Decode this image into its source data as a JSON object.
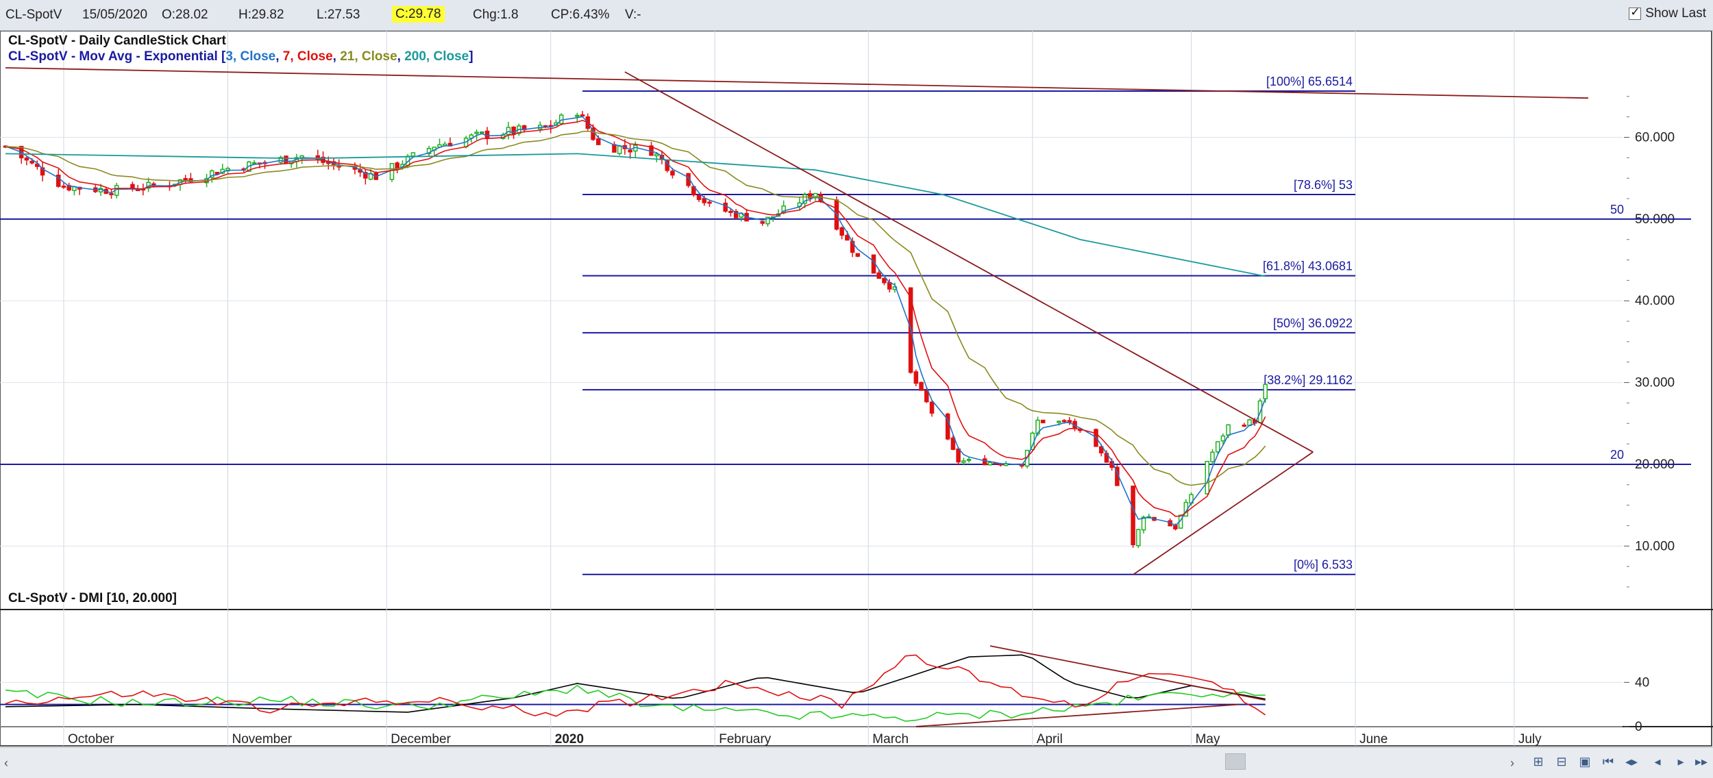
{
  "header": {
    "symbol": "CL-SpotV",
    "date": "15/05/2020",
    "open": "O:28.02",
    "high": "H:29.82",
    "low": "L:27.53",
    "close": "C:29.78",
    "change": "Chg:1.8",
    "change_pct": "CP:6.43%",
    "volume": "V:-",
    "show_last_label": "Show Last",
    "show_last_checked": true
  },
  "colors": {
    "ema3": "#1f73c8",
    "ema7": "#e01010",
    "ema21": "#8a8a20",
    "ema200": "#189a9a",
    "navy": "#1a1aa0",
    "maroon": "#8b1a1a",
    "up": "#20b020",
    "down": "#e01010",
    "adx": "#000000",
    "di_plus": "#22cc22",
    "di_minus": "#e01010"
  },
  "chart_data": [
    {
      "type": "candlestick",
      "title": "CL-SpotV - Daily CandleStick Chart",
      "legend": {
        "prefix": "CL-SpotV - Mov Avg - Exponential [",
        "items": [
          "3, Close",
          "7, Close",
          "21, Close",
          "200, Close"
        ],
        "suffix": "]"
      },
      "x_labels": [
        "October",
        "November",
        "December",
        "2020",
        "February",
        "March",
        "April",
        "May",
        "June",
        "July"
      ],
      "y_ticks": [
        10,
        20,
        30,
        40,
        50,
        60
      ],
      "y_tick_labels": [
        "10.000",
        "20.000",
        "30.000",
        "40.000",
        "50.000",
        "60.000"
      ],
      "ylim": [
        5,
        68
      ],
      "horizontal_lines": [
        {
          "label": "50",
          "value": 50
        },
        {
          "label": "20",
          "value": 20
        }
      ],
      "fibonacci": [
        {
          "label": "[100%] 65.6514",
          "value": 65.6514
        },
        {
          "label": "[78.6%] 53",
          "value": 53
        },
        {
          "label": "[61.8%] 43.0681",
          "value": 43.0681
        },
        {
          "label": "[50%] 36.0922",
          "value": 36.0922
        },
        {
          "label": "[38.2%] 29.1162",
          "value": 29.1162
        },
        {
          "label": "[0%] 6.533",
          "value": 6.533
        }
      ],
      "close_series": {
        "start": "2019-09-20",
        "end": "2020-05-15",
        "points": [
          [
            "2019-09-20",
            58.9
          ],
          [
            "2019-10-01",
            54.0
          ],
          [
            "2019-10-10",
            53.5
          ],
          [
            "2019-10-20",
            54.2
          ],
          [
            "2019-11-01",
            56.2
          ],
          [
            "2019-11-15",
            57.7
          ],
          [
            "2019-11-29",
            55.2
          ],
          [
            "2019-12-10",
            59.0
          ],
          [
            "2019-12-20",
            60.4
          ],
          [
            "2019-12-31",
            61.1
          ],
          [
            "2020-01-06",
            63.3
          ],
          [
            "2020-01-10",
            59.0
          ],
          [
            "2020-01-20",
            58.4
          ],
          [
            "2020-01-31",
            51.6
          ],
          [
            "2020-02-10",
            49.6
          ],
          [
            "2020-02-20",
            53.3
          ],
          [
            "2020-02-28",
            45.3
          ],
          [
            "2020-03-06",
            41.3
          ],
          [
            "2020-03-09",
            31.1
          ],
          [
            "2020-03-18",
            20.4
          ],
          [
            "2020-03-30",
            20.1
          ],
          [
            "2020-04-02",
            25.3
          ],
          [
            "2020-04-08",
            25.1
          ],
          [
            "2020-04-16",
            19.9
          ],
          [
            "2020-04-20",
            10.0
          ],
          [
            "2020-04-22",
            13.8
          ],
          [
            "2020-04-28",
            12.3
          ],
          [
            "2020-05-04",
            20.4
          ],
          [
            "2020-05-08",
            24.7
          ],
          [
            "2020-05-13",
            25.3
          ],
          [
            "2020-05-15",
            29.8
          ]
        ]
      },
      "ema200_series": [
        [
          "2019-09-20",
          58.0
        ],
        [
          "2019-11-15",
          57.4
        ],
        [
          "2020-01-06",
          58.0
        ],
        [
          "2020-02-20",
          56.0
        ],
        [
          "2020-03-15",
          53.0
        ],
        [
          "2020-04-10",
          47.5
        ],
        [
          "2020-05-15",
          43.0
        ]
      ],
      "trendlines": [
        {
          "from": [
            "2019-09-20",
            68.5
          ],
          "to": [
            "2020-07-15",
            64.8
          ]
        },
        {
          "from": [
            "2020-01-15",
            68.0
          ],
          "to": [
            "2020-05-24",
            21.5
          ]
        },
        {
          "from": [
            "2020-04-20",
            6.5
          ],
          "to": [
            "2020-05-24",
            21.5
          ]
        }
      ]
    },
    {
      "type": "line",
      "title": "CL-SpotV - DMI [10, 20.000]",
      "y_ticks": [
        0,
        40
      ],
      "y_tick_labels": [
        "0",
        "40"
      ],
      "ylim": [
        -5,
        78
      ],
      "reference_line": 20,
      "series": [
        {
          "key": "adx",
          "points": [
            [
              "2019-09-20",
              18
            ],
            [
              "2019-10-15",
              20
            ],
            [
              "2019-11-10",
              16
            ],
            [
              "2019-12-05",
              13
            ],
            [
              "2019-12-25",
              26
            ],
            [
              "2020-01-06",
              39
            ],
            [
              "2020-01-25",
              25
            ],
            [
              "2020-02-10",
              45
            ],
            [
              "2020-02-28",
              30
            ],
            [
              "2020-03-20",
              63
            ],
            [
              "2020-03-31",
              65
            ],
            [
              "2020-04-08",
              40
            ],
            [
              "2020-04-20",
              25
            ],
            [
              "2020-05-01",
              37
            ],
            [
              "2020-05-15",
              25
            ]
          ]
        },
        {
          "key": "di_plus",
          "points": [
            [
              "2019-09-20",
              30
            ],
            [
              "2019-10-15",
              21
            ],
            [
              "2019-11-10",
              24
            ],
            [
              "2019-12-05",
              18
            ],
            [
              "2019-12-31",
              30
            ],
            [
              "2020-01-06",
              36
            ],
            [
              "2020-01-20",
              18
            ],
            [
              "2020-02-15",
              10
            ],
            [
              "2020-03-10",
              8
            ],
            [
              "2020-03-28",
              12
            ],
            [
              "2020-04-10",
              18
            ],
            [
              "2020-04-25",
              28
            ],
            [
              "2020-05-05",
              32
            ],
            [
              "2020-05-12",
              26
            ],
            [
              "2020-05-15",
              32
            ]
          ]
        },
        {
          "key": "di_minus",
          "points": [
            [
              "2019-09-20",
              22
            ],
            [
              "2019-10-15",
              30
            ],
            [
              "2019-11-10",
              16
            ],
            [
              "2019-12-05",
              25
            ],
            [
              "2019-12-31",
              12
            ],
            [
              "2020-01-15",
              22
            ],
            [
              "2020-02-05",
              40
            ],
            [
              "2020-02-25",
              20
            ],
            [
              "2020-03-09",
              66
            ],
            [
              "2020-03-28",
              32
            ],
            [
              "2020-04-10",
              18
            ],
            [
              "2020-04-20",
              48
            ],
            [
              "2020-05-05",
              40
            ],
            [
              "2020-05-15",
              14
            ]
          ]
        }
      ],
      "trendlines": [
        {
          "from": [
            "2020-03-24",
            73
          ],
          "to": [
            "2020-05-15",
            24
          ]
        },
        {
          "from": [
            "2020-03-10",
            0
          ],
          "to": [
            "2020-05-10",
            20
          ]
        }
      ]
    }
  ]
}
